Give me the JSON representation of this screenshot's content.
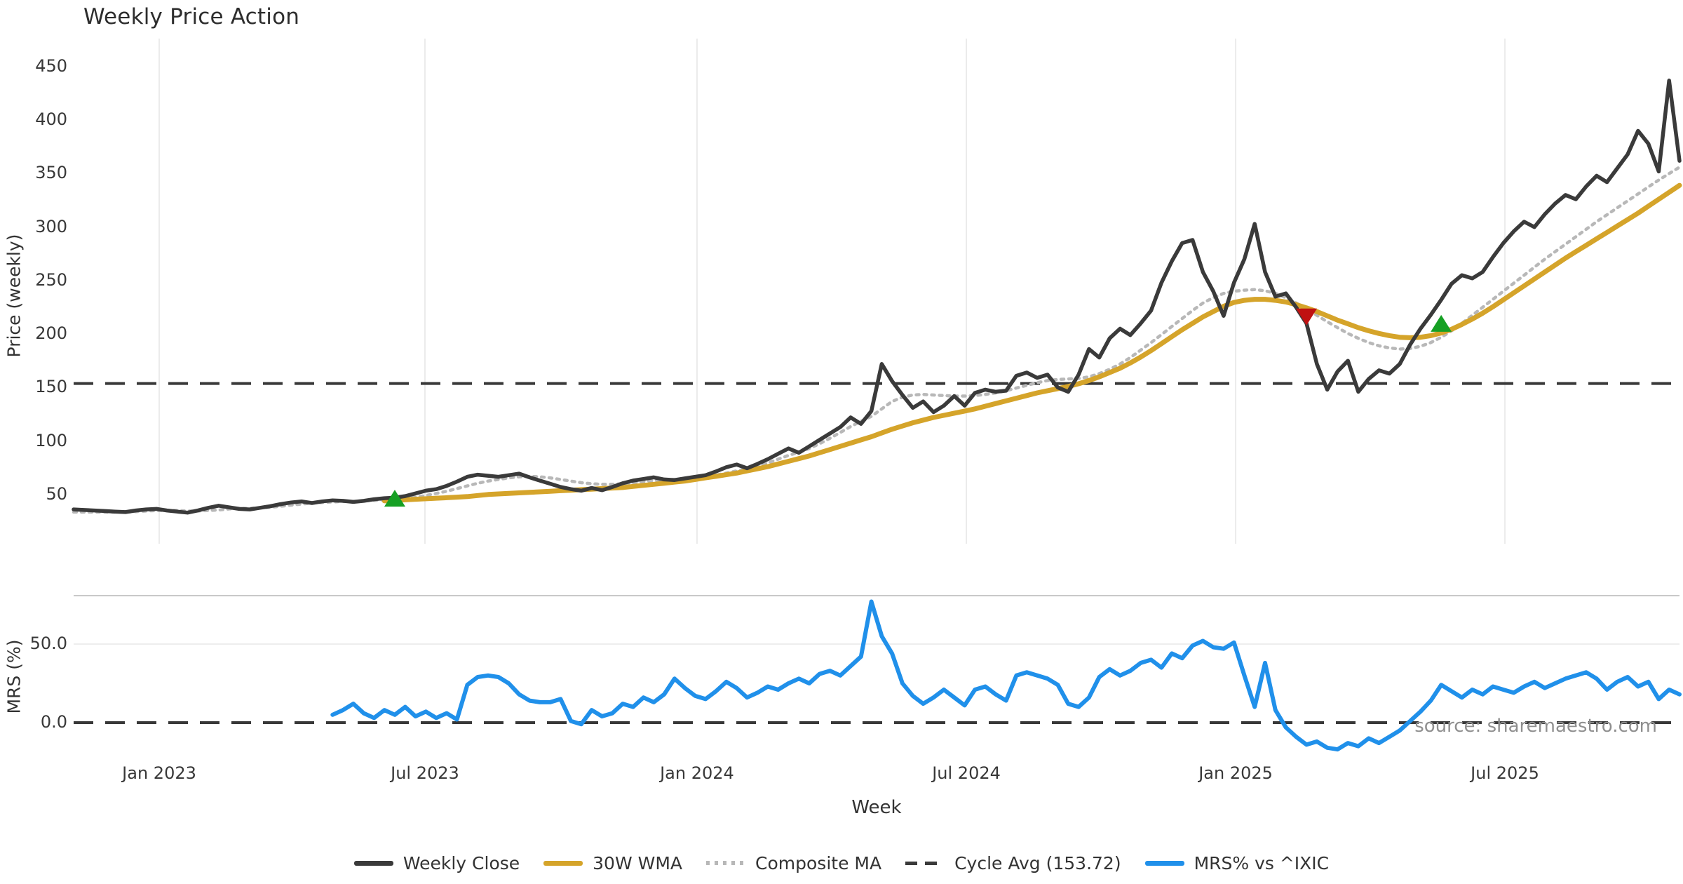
{
  "title": "Weekly Price Action",
  "xlabel": "Week",
  "source_note": "source: sharemaestro.com",
  "price_panel": {
    "ylabel": "Price (weekly)"
  },
  "mrs_panel": {
    "ylabel": "MRS (%)"
  },
  "legend": [
    {
      "label": "Weekly Close",
      "color": "#3a3a3a",
      "style": "solid"
    },
    {
      "label": "30W WMA",
      "color": "#d5a42a",
      "style": "solid"
    },
    {
      "label": "Composite MA",
      "color": "#b8b8b8",
      "style": "dotted"
    },
    {
      "label": "Cycle Avg (153.72)",
      "color": "#3a3a3a",
      "style": "dashed"
    },
    {
      "label": "MRS% vs ^IXIC",
      "color": "#2090ea",
      "style": "solid"
    }
  ],
  "chart_data": {
    "type": "line",
    "title": "Weekly Price Action",
    "xlabel": "Week",
    "x_unit": "weekly index from first data point (Nov 2022)",
    "x_ticks": [
      {
        "label": "Jan 2023",
        "week": 8.26
      },
      {
        "label": "Jul 2023",
        "week": 33.91
      },
      {
        "label": "Jan 2024",
        "week": 60.17
      },
      {
        "label": "Jul 2024",
        "week": 86.17
      },
      {
        "label": "Jan 2025",
        "week": 112.16
      },
      {
        "label": "Jul 2025",
        "week": 138.15
      }
    ],
    "grid": "vertical-only",
    "legend_position": "bottom-center",
    "price_axis": {
      "label": "Price (weekly)",
      "ticks": [
        50,
        100,
        150,
        200,
        250,
        300,
        350,
        400,
        450
      ],
      "ylim": [
        0,
        476
      ],
      "cycle_avg": 153.72
    },
    "mrs_axis": {
      "label": "MRS (%)",
      "ticks": [
        0.0,
        50.0
      ],
      "tick_labels": [
        "0.0",
        "50.0"
      ],
      "ylim": [
        -25,
        81
      ],
      "zero_line": 0
    },
    "series": [
      {
        "name": "Weekly Close",
        "panel": "price",
        "color": "#3a3a3a",
        "style": "solid",
        "width": 5.5,
        "start_week": 0,
        "values": [
          36,
          35.5,
          35,
          34.5,
          34,
          33.5,
          35,
          36,
          36.5,
          35,
          34,
          33,
          35,
          37.5,
          39.5,
          38,
          36.5,
          36,
          37.5,
          39,
          41,
          42.5,
          43.5,
          42,
          43.5,
          44.5,
          44,
          43,
          44,
          45.5,
          46.5,
          47,
          48.5,
          51,
          53.5,
          55,
          58,
          62,
          66.5,
          68.5,
          67.5,
          66.5,
          68,
          69.5,
          66,
          63,
          60,
          57,
          55,
          53.5,
          56,
          54,
          57,
          60.5,
          63,
          64.5,
          66,
          64,
          63.5,
          65,
          66.5,
          68,
          71.5,
          75.5,
          78,
          74.5,
          78.5,
          83,
          88,
          93,
          89,
          95,
          101,
          107,
          113,
          122,
          116,
          128,
          172,
          156,
          143,
          131,
          137,
          127,
          133,
          142,
          133,
          145,
          148,
          146,
          147,
          161,
          164,
          159,
          162,
          150,
          146,
          162,
          186,
          178,
          196,
          205,
          199,
          210,
          222,
          248,
          268,
          285,
          288,
          258,
          240,
          217,
          248,
          270,
          303,
          258,
          235,
          238,
          225,
          210,
          172,
          148,
          165,
          175,
          146,
          158,
          166,
          163,
          172,
          190,
          205,
          218,
          232,
          247,
          255,
          252,
          258,
          272,
          285,
          296,
          305,
          300,
          312,
          322,
          330,
          326,
          338,
          348,
          342,
          355,
          368,
          390,
          378,
          352,
          437,
          362
        ]
      },
      {
        "name": "30W WMA",
        "panel": "price",
        "color": "#d5a42a",
        "style": "solid",
        "width": 7,
        "start_week": 30,
        "values": [
          44,
          44.5,
          45,
          45.5,
          46,
          46.5,
          47,
          47.5,
          48,
          49,
          50,
          50.5,
          51,
          51.5,
          52,
          52.5,
          53,
          53.5,
          54,
          54.5,
          55,
          55.5,
          56,
          56.5,
          57.5,
          58.5,
          59.5,
          60.5,
          61.5,
          62.5,
          64,
          65.5,
          67,
          68.5,
          70,
          72,
          74,
          76,
          78.5,
          81,
          83.5,
          86,
          89,
          92,
          95,
          98,
          101,
          104,
          107.5,
          111,
          114,
          117,
          119.5,
          122,
          124,
          126,
          128,
          130,
          132.5,
          135,
          137.5,
          140,
          142.5,
          145,
          147,
          149,
          151,
          153.5,
          156.5,
          160,
          164,
          168,
          173,
          178.5,
          184.5,
          191,
          197.5,
          204,
          210,
          216,
          221,
          226,
          229.5,
          231.5,
          232.5,
          232.5,
          231.5,
          230,
          227.5,
          224.5,
          221,
          217,
          213,
          209.5,
          206,
          203,
          200.5,
          198.5,
          197,
          196.5,
          197,
          198.5,
          201,
          204.5,
          209,
          214,
          219.5,
          225.5,
          232,
          238.5,
          245,
          251.5,
          258,
          264.5,
          271,
          277,
          283,
          289,
          295,
          301,
          307,
          313,
          319.5,
          326,
          332.5,
          339
        ]
      },
      {
        "name": "Composite MA",
        "panel": "price",
        "color": "#b8b8b8",
        "style": "dotted",
        "width": 4.5,
        "start_week": 0,
        "values": [
          33.5,
          33.5,
          33.5,
          33.5,
          33.5,
          33.5,
          34,
          34.5,
          35,
          35,
          35,
          34.5,
          34.5,
          35,
          35.5,
          36.5,
          37,
          37,
          37.5,
          38,
          39,
          40,
          41,
          42,
          42.5,
          43,
          43.5,
          43.5,
          44,
          44.5,
          45,
          45.5,
          46.5,
          47.5,
          49,
          51,
          53,
          55.5,
          58,
          60.5,
          62.5,
          64,
          65.5,
          66.5,
          67,
          66.5,
          65.5,
          64,
          62.5,
          61,
          60,
          59.5,
          59.5,
          60,
          61,
          62,
          63,
          63.5,
          64,
          64.5,
          65.5,
          66.5,
          68,
          70,
          72,
          74,
          76.5,
          79.5,
          83,
          86.5,
          89.5,
          93,
          97.5,
          102.5,
          108,
          113.5,
          118.5,
          123,
          130,
          137,
          141,
          143,
          143.5,
          143,
          142.5,
          142,
          142,
          142.5,
          143.5,
          145,
          147,
          149.5,
          152,
          154.5,
          156.5,
          157.5,
          158,
          158.5,
          160,
          163,
          167,
          172,
          178,
          185,
          192,
          199.5,
          207,
          214.5,
          222,
          229,
          234,
          238,
          240,
          241,
          241.5,
          240.5,
          238,
          234,
          229,
          223.5,
          217.5,
          211.5,
          206,
          200.5,
          196,
          192,
          189,
          187,
          186,
          186.5,
          188.5,
          192,
          197,
          203,
          210,
          217.5,
          225,
          232.5,
          240,
          247.5,
          255,
          262.5,
          270,
          277,
          284,
          291,
          298,
          305,
          311.5,
          318,
          324.5,
          331,
          337.5,
          344,
          350,
          356
        ]
      },
      {
        "name": "MRS% vs ^IXIC",
        "panel": "mrs",
        "color": "#2090ea",
        "style": "solid",
        "width": 6,
        "start_week": 25,
        "values": [
          5,
          8,
          12,
          6,
          3,
          8,
          5,
          10,
          4,
          7,
          3,
          6,
          2,
          24,
          29,
          30,
          29,
          25,
          18,
          14,
          13,
          13,
          15,
          1,
          -1,
          8,
          4,
          6,
          12,
          10,
          16,
          13,
          18,
          28,
          22,
          17,
          15,
          20,
          26,
          22,
          16,
          19,
          23,
          21,
          25,
          28,
          25,
          31,
          33,
          30,
          36,
          42,
          77,
          55,
          44,
          25,
          17,
          12,
          16,
          21,
          16,
          11,
          21,
          23,
          18,
          14,
          30,
          32,
          30,
          28,
          24,
          12,
          10,
          16,
          29,
          34,
          30,
          33,
          38,
          40,
          35,
          44,
          41,
          49,
          52,
          48,
          47,
          51,
          30,
          10,
          38,
          8,
          -3,
          -9,
          -14,
          -12,
          -16,
          -17,
          -13,
          -15,
          -10,
          -13,
          -9,
          -5,
          1,
          7,
          14,
          24,
          20,
          16,
          21,
          18,
          23,
          21,
          19,
          23,
          26,
          22,
          25,
          28,
          30,
          32,
          28,
          21,
          26,
          29,
          23,
          26,
          15,
          21,
          18
        ]
      }
    ],
    "markers": [
      {
        "type": "buy",
        "shape": "triangle-up",
        "color": "#16a024",
        "week": 31,
        "price": 46.5
      },
      {
        "type": "sell",
        "shape": "triangle-down",
        "color": "#c01212",
        "week": 119,
        "price": 216
      },
      {
        "type": "buy",
        "shape": "triangle-up",
        "color": "#16a024",
        "week": 132,
        "price": 210
      }
    ],
    "reference_lines": [
      {
        "name": "Cycle Avg",
        "panel": "price",
        "value": 153.72,
        "style": "dashed",
        "color": "#383838"
      },
      {
        "name": "Zero line",
        "panel": "mrs",
        "value": 0,
        "style": "dashed",
        "color": "#383838"
      }
    ]
  }
}
